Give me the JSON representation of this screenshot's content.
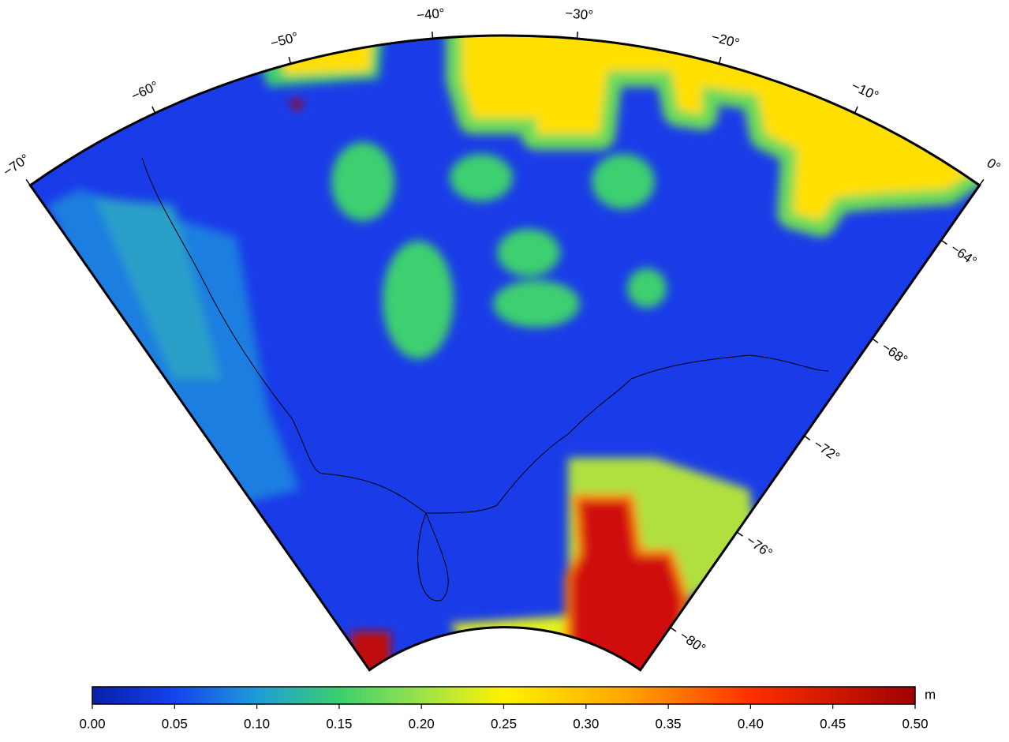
{
  "map": {
    "lonlim": [
      -70,
      0
    ],
    "latlim": [
      -81.8,
      -61.8
    ],
    "lon_ticks": [
      {
        "value": -70,
        "label": "−70°"
      },
      {
        "value": -60,
        "label": "−60°"
      },
      {
        "value": -50,
        "label": "−50°"
      },
      {
        "value": -40,
        "label": "−40°"
      },
      {
        "value": -30,
        "label": "−30°"
      },
      {
        "value": -20,
        "label": "−20°"
      },
      {
        "value": -10,
        "label": "−10°"
      },
      {
        "value": 0,
        "label": "0°"
      }
    ],
    "lat_ticks": [
      {
        "value": -64,
        "label": "−64°"
      },
      {
        "value": -68,
        "label": "−68°"
      },
      {
        "value": -72,
        "label": "−72°"
      },
      {
        "value": -76,
        "label": "−76°"
      },
      {
        "value": -80,
        "label": "−80°"
      }
    ]
  },
  "colorbar": {
    "unit": "m",
    "clim": [
      0,
      0.5
    ],
    "ticks": [
      {
        "value": 0,
        "label": "0.00"
      },
      {
        "value": 0.05,
        "label": "0.05"
      },
      {
        "value": 0.1,
        "label": "0.10"
      },
      {
        "value": 0.15,
        "label": "0.15"
      },
      {
        "value": 0.2,
        "label": "0.20"
      },
      {
        "value": 0.25,
        "label": "0.25"
      },
      {
        "value": 0.3,
        "label": "0.30"
      },
      {
        "value": 0.35,
        "label": "0.35"
      },
      {
        "value": 0.4,
        "label": "0.40"
      },
      {
        "value": 0.45,
        "label": "0.45"
      },
      {
        "value": 0.5,
        "label": "0.50"
      }
    ]
  }
}
